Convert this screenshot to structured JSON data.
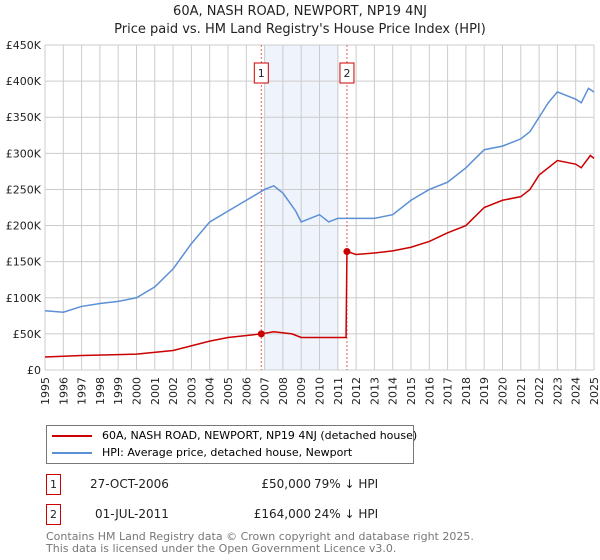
{
  "chart_data": {
    "type": "line",
    "title": "60A, NASH ROAD, NEWPORT, NP19 4NJ",
    "subtitle": "Price paid vs. HM Land Registry's House Price Index (HPI)",
    "xlim": [
      1995,
      2025
    ],
    "ylim": [
      0,
      450000
    ],
    "y_ticks": [
      "£0",
      "£50K",
      "£100K",
      "£150K",
      "£200K",
      "£250K",
      "£300K",
      "£350K",
      "£400K",
      "£450K"
    ],
    "x_ticks": [
      "1995",
      "1996",
      "1997",
      "1998",
      "1999",
      "2000",
      "2001",
      "2002",
      "2003",
      "2004",
      "2005",
      "2006",
      "2007",
      "2008",
      "2009",
      "2010",
      "2011",
      "2012",
      "2013",
      "2014",
      "2015",
      "2016",
      "2017",
      "2018",
      "2019",
      "2020",
      "2021",
      "2022",
      "2023",
      "2024",
      "2025"
    ],
    "grid": true,
    "series": [
      {
        "name": "60A, NASH ROAD, NEWPORT, NP19 4NJ (detached house)",
        "color": "#cc0000",
        "x": [
          1995,
          1997,
          2000,
          2002,
          2004,
          2005,
          2006.82,
          2007.5,
          2008.5,
          2009,
          2011.45,
          2011.5,
          2012,
          2013,
          2014,
          2015,
          2016,
          2017,
          2018,
          2019,
          2020,
          2021,
          2021.5,
          2022,
          2023,
          2024,
          2024.3,
          2024.8,
          2025
        ],
        "y": [
          18000,
          20000,
          22000,
          27000,
          40000,
          45000,
          50000,
          53000,
          50000,
          45000,
          45000,
          164000,
          160000,
          162000,
          165000,
          170000,
          178000,
          190000,
          200000,
          225000,
          235000,
          240000,
          250000,
          270000,
          290000,
          285000,
          280000,
          297000,
          293000
        ]
      },
      {
        "name": "HPI: Average price, detached house, Newport",
        "color": "#5b8fd6",
        "x": [
          1995,
          1996,
          1997,
          1998,
          1999,
          2000,
          2001,
          2002,
          2003,
          2004,
          2005,
          2006,
          2007,
          2007.5,
          2008,
          2008.7,
          2009,
          2010,
          2010.5,
          2011,
          2012,
          2013,
          2014,
          2015,
          2016,
          2017,
          2018,
          2019,
          2020,
          2021,
          2021.5,
          2022,
          2022.5,
          2023,
          2023.5,
          2024,
          2024.3,
          2024.7,
          2025
        ],
        "y": [
          82000,
          80000,
          88000,
          92000,
          95000,
          100000,
          115000,
          140000,
          175000,
          205000,
          220000,
          235000,
          250000,
          255000,
          245000,
          220000,
          205000,
          215000,
          205000,
          210000,
          210000,
          210000,
          215000,
          235000,
          250000,
          260000,
          280000,
          305000,
          310000,
          320000,
          330000,
          350000,
          370000,
          385000,
          380000,
          375000,
          370000,
          390000,
          385000
        ]
      }
    ],
    "sales": [
      {
        "label": "1",
        "x": 2006.82,
        "y": 50000,
        "date": "27-OCT-2006",
        "price": "£50,000",
        "hpi": "79% ↓ HPI"
      },
      {
        "label": "2",
        "x": 2011.5,
        "y": 164000,
        "date": "01-JUL-2011",
        "price": "£164,000",
        "hpi": "24% ↓ HPI"
      }
    ],
    "shaded_range": [
      2007,
      2011.05
    ]
  },
  "footer": {
    "line1": "Contains HM Land Registry data © Crown copyright and database right 2025.",
    "line2": "This data is licensed under the Open Government Licence v3.0."
  }
}
